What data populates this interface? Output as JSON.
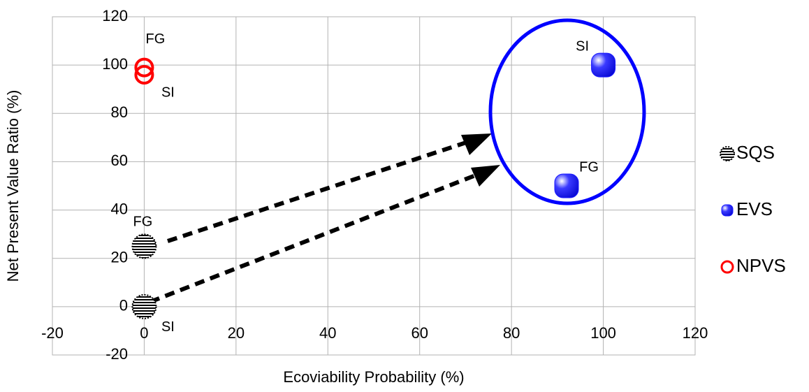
{
  "chart_data": {
    "type": "scatter",
    "x_label": "Ecoviability Probability (%)",
    "y_label": "Net Present Value Ratio (%)",
    "xlim": [
      -20,
      120
    ],
    "xticks": [
      -20,
      0,
      20,
      40,
      60,
      80,
      100,
      120
    ],
    "ylim": [
      -20,
      120
    ],
    "yticks": [
      -20,
      0,
      20,
      40,
      60,
      80,
      100,
      120
    ],
    "grid": true,
    "legend": "right",
    "series": [
      {
        "name": "SQS",
        "color": "#000000",
        "x": [
          0,
          0
        ],
        "values": [
          25,
          0
        ],
        "labels": [
          "FG",
          "SI"
        ]
      },
      {
        "name": "EVS",
        "color": "#1a1aff",
        "x": [
          100,
          92
        ],
        "values": [
          100,
          50
        ],
        "labels": [
          "SI",
          "FG"
        ]
      },
      {
        "name": "NPVS",
        "color": "#ff0000",
        "x": [
          0,
          0
        ],
        "values": [
          99,
          96
        ],
        "labels": [
          "FG",
          "SI"
        ]
      }
    ]
  }
}
